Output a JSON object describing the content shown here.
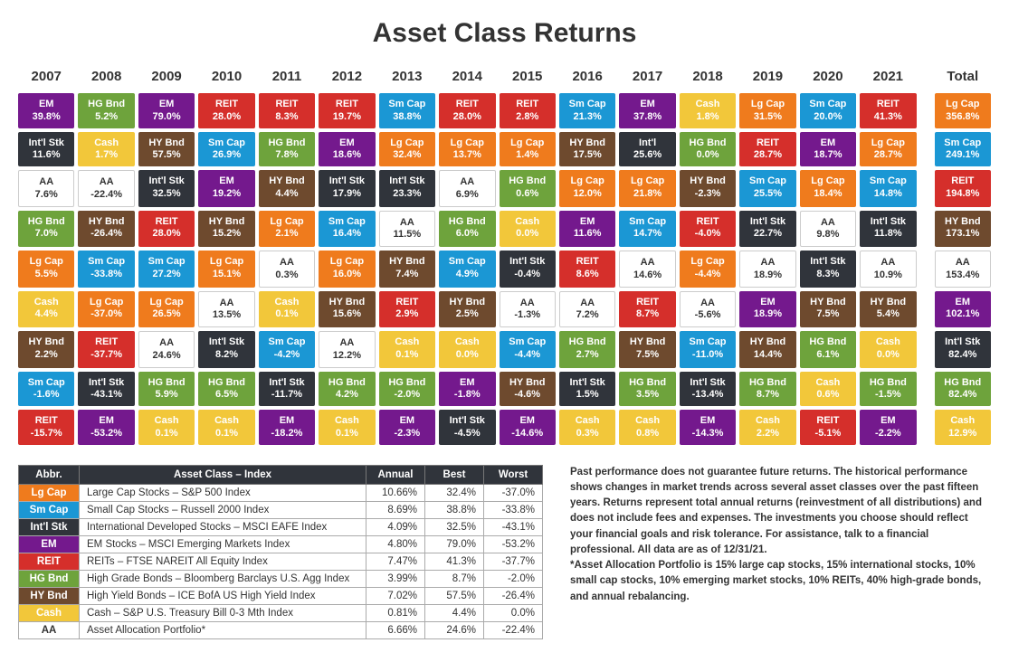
{
  "title": "Asset Class Returns",
  "colors": {
    "Lg Cap": "#ef7b1d",
    "Sm Cap": "#1b97d4",
    "Int'l Stk": "#30343b",
    "EM": "#74198d",
    "REIT": "#d52f2b",
    "HG Bnd": "#6ea33c",
    "HY Bnd": "#6e4a2e",
    "Cash": "#f2c73a",
    "AA": "#ffffff"
  },
  "aa_text_color": "#333333",
  "years": [
    "2007",
    "2008",
    "2009",
    "2010",
    "2011",
    "2012",
    "2013",
    "2014",
    "2015",
    "2016",
    "2017",
    "2018",
    "2019",
    "2020",
    "2021"
  ],
  "total_label": "Total",
  "columns": [
    [
      [
        "EM",
        "39.8%"
      ],
      [
        "Int'l Stk",
        "11.6%"
      ],
      [
        "AA",
        "7.6%"
      ],
      [
        "HG Bnd",
        "7.0%"
      ],
      [
        "Lg Cap",
        "5.5%"
      ],
      [
        "Cash",
        "4.4%"
      ],
      [
        "HY Bnd",
        "2.2%"
      ],
      [
        "Sm Cap",
        "-1.6%"
      ],
      [
        "REIT",
        "-15.7%"
      ]
    ],
    [
      [
        "HG Bnd",
        "5.2%"
      ],
      [
        "Cash",
        "1.7%"
      ],
      [
        "AA",
        "-22.4%"
      ],
      [
        "HY Bnd",
        "-26.4%"
      ],
      [
        "Sm Cap",
        "-33.8%"
      ],
      [
        "Lg Cap",
        "-37.0%"
      ],
      [
        "REIT",
        "-37.7%"
      ],
      [
        "Int'l Stk",
        "-43.1%"
      ],
      [
        "EM",
        "-53.2%"
      ]
    ],
    [
      [
        "EM",
        "79.0%"
      ],
      [
        "HY Bnd",
        "57.5%"
      ],
      [
        "Int'l Stk",
        "32.5%"
      ],
      [
        "REIT",
        "28.0%"
      ],
      [
        "Sm Cap",
        "27.2%"
      ],
      [
        "Lg Cap",
        "26.5%"
      ],
      [
        "AA",
        "24.6%"
      ],
      [
        "HG Bnd",
        "5.9%"
      ],
      [
        "Cash",
        "0.1%"
      ]
    ],
    [
      [
        "REIT",
        "28.0%"
      ],
      [
        "Sm Cap",
        "26.9%"
      ],
      [
        "EM",
        "19.2%"
      ],
      [
        "HY Bnd",
        "15.2%"
      ],
      [
        "Lg Cap",
        "15.1%"
      ],
      [
        "AA",
        "13.5%"
      ],
      [
        "Int'l Stk",
        "8.2%"
      ],
      [
        "HG Bnd",
        "6.5%"
      ],
      [
        "Cash",
        "0.1%"
      ]
    ],
    [
      [
        "REIT",
        "8.3%"
      ],
      [
        "HG Bnd",
        "7.8%"
      ],
      [
        "HY Bnd",
        "4.4%"
      ],
      [
        "Lg Cap",
        "2.1%"
      ],
      [
        "AA",
        "0.3%"
      ],
      [
        "Cash",
        "0.1%"
      ],
      [
        "Sm Cap",
        "-4.2%"
      ],
      [
        "Int'l Stk",
        "-11.7%"
      ],
      [
        "EM",
        "-18.2%"
      ]
    ],
    [
      [
        "REIT",
        "19.7%"
      ],
      [
        "EM",
        "18.6%"
      ],
      [
        "Int'l Stk",
        "17.9%"
      ],
      [
        "Sm Cap",
        "16.4%"
      ],
      [
        "Lg Cap",
        "16.0%"
      ],
      [
        "HY Bnd",
        "15.6%"
      ],
      [
        "AA",
        "12.2%"
      ],
      [
        "HG Bnd",
        "4.2%"
      ],
      [
        "Cash",
        "0.1%"
      ]
    ],
    [
      [
        "Sm Cap",
        "38.8%"
      ],
      [
        "Lg Cap",
        "32.4%"
      ],
      [
        "Int'l Stk",
        "23.3%"
      ],
      [
        "AA",
        "11.5%"
      ],
      [
        "HY Bnd",
        "7.4%"
      ],
      [
        "REIT",
        "2.9%"
      ],
      [
        "Cash",
        "0.1%"
      ],
      [
        "HG Bnd",
        "-2.0%"
      ],
      [
        "EM",
        "-2.3%"
      ]
    ],
    [
      [
        "REIT",
        "28.0%"
      ],
      [
        "Lg Cap",
        "13.7%"
      ],
      [
        "AA",
        "6.9%"
      ],
      [
        "HG Bnd",
        "6.0%"
      ],
      [
        "Sm Cap",
        "4.9%"
      ],
      [
        "HY Bnd",
        "2.5%"
      ],
      [
        "Cash",
        "0.0%"
      ],
      [
        "EM",
        "-1.8%"
      ],
      [
        "Int'l Stk",
        "-4.5%"
      ]
    ],
    [
      [
        "REIT",
        "2.8%"
      ],
      [
        "Lg Cap",
        "1.4%"
      ],
      [
        "HG Bnd",
        "0.6%"
      ],
      [
        "Cash",
        "0.0%"
      ],
      [
        "Int'l Stk",
        "-0.4%"
      ],
      [
        "AA",
        "-1.3%"
      ],
      [
        "Sm Cap",
        "-4.4%"
      ],
      [
        "HY Bnd",
        "-4.6%"
      ],
      [
        "EM",
        "-14.6%"
      ]
    ],
    [
      [
        "Sm Cap",
        "21.3%"
      ],
      [
        "HY Bnd",
        "17.5%"
      ],
      [
        "Lg Cap",
        "12.0%"
      ],
      [
        "EM",
        "11.6%"
      ],
      [
        "REIT",
        "8.6%"
      ],
      [
        "AA",
        "7.2%"
      ],
      [
        "HG Bnd",
        "2.7%"
      ],
      [
        "Int'l Stk",
        "1.5%"
      ],
      [
        "Cash",
        "0.3%"
      ]
    ],
    [
      [
        "EM",
        "37.8%"
      ],
      [
        "Int'l",
        "25.6%"
      ],
      [
        "Lg Cap",
        "21.8%"
      ],
      [
        "Sm Cap",
        "14.7%"
      ],
      [
        "AA",
        "14.6%"
      ],
      [
        "REIT",
        "8.7%"
      ],
      [
        "HY Bnd",
        "7.5%"
      ],
      [
        "HG Bnd",
        "3.5%"
      ],
      [
        "Cash",
        "0.8%"
      ]
    ],
    [
      [
        "Cash",
        "1.8%"
      ],
      [
        "HG Bnd",
        "0.0%"
      ],
      [
        "HY Bnd",
        "-2.3%"
      ],
      [
        "REIT",
        "-4.0%"
      ],
      [
        "Lg Cap",
        "-4.4%"
      ],
      [
        "AA",
        "-5.6%"
      ],
      [
        "Sm Cap",
        "-11.0%"
      ],
      [
        "Int'l Stk",
        "-13.4%"
      ],
      [
        "EM",
        "-14.3%"
      ]
    ],
    [
      [
        "Lg Cap",
        "31.5%"
      ],
      [
        "REIT",
        "28.7%"
      ],
      [
        "Sm Cap",
        "25.5%"
      ],
      [
        "Int'l Stk",
        "22.7%"
      ],
      [
        "AA",
        "18.9%"
      ],
      [
        "EM",
        "18.9%"
      ],
      [
        "HY Bnd",
        "14.4%"
      ],
      [
        "HG Bnd",
        "8.7%"
      ],
      [
        "Cash",
        "2.2%"
      ]
    ],
    [
      [
        "Sm Cap",
        "20.0%"
      ],
      [
        "EM",
        "18.7%"
      ],
      [
        "Lg Cap",
        "18.4%"
      ],
      [
        "AA",
        "9.8%"
      ],
      [
        "Int'l Stk",
        "8.3%"
      ],
      [
        "HY Bnd",
        "7.5%"
      ],
      [
        "HG Bnd",
        "6.1%"
      ],
      [
        "Cash",
        "0.6%"
      ],
      [
        "REIT",
        "-5.1%"
      ]
    ],
    [
      [
        "REIT",
        "41.3%"
      ],
      [
        "Lg Cap",
        "28.7%"
      ],
      [
        "Sm Cap",
        "14.8%"
      ],
      [
        "Int'l Stk",
        "11.8%"
      ],
      [
        "AA",
        "10.9%"
      ],
      [
        "HY Bnd",
        "5.4%"
      ],
      [
        "Cash",
        "0.0%"
      ],
      [
        "HG Bnd",
        "-1.5%"
      ],
      [
        "EM",
        "-2.2%"
      ]
    ]
  ],
  "total_column": [
    [
      "Lg Cap",
      "356.8%"
    ],
    [
      "Sm Cap",
      "249.1%"
    ],
    [
      "REIT",
      "194.8%"
    ],
    [
      "HY Bnd",
      "173.1%"
    ],
    [
      "AA",
      "153.4%"
    ],
    [
      "EM",
      "102.1%"
    ],
    [
      "Int'l Stk",
      "82.4%"
    ],
    [
      "HG Bnd",
      "82.4%"
    ],
    [
      "Cash",
      "12.9%"
    ]
  ],
  "legend": {
    "headers": [
      "Abbr.",
      "Asset Class – Index",
      "Annual",
      "Best",
      "Worst"
    ],
    "rows": [
      {
        "abbr": "Lg Cap",
        "name": "Large Cap Stocks – S&P 500 Index",
        "annual": "10.66%",
        "best": "32.4%",
        "worst": "-37.0%"
      },
      {
        "abbr": "Sm Cap",
        "name": "Small Cap Stocks – Russell 2000 Index",
        "annual": "8.69%",
        "best": "38.8%",
        "worst": "-33.8%"
      },
      {
        "abbr": "Int'l Stk",
        "name": "International Developed Stocks – MSCI EAFE Index",
        "annual": "4.09%",
        "best": "32.5%",
        "worst": "-43.1%"
      },
      {
        "abbr": "EM",
        "name": "EM Stocks – MSCI Emerging Markets Index",
        "annual": "4.80%",
        "best": "79.0%",
        "worst": "-53.2%"
      },
      {
        "abbr": "REIT",
        "name": "REITs – FTSE NAREIT All Equity Index",
        "annual": "7.47%",
        "best": "41.3%",
        "worst": "-37.7%"
      },
      {
        "abbr": "HG Bnd",
        "name": "High Grade Bonds – Bloomberg Barclays U.S. Agg Index",
        "annual": "3.99%",
        "best": "8.7%",
        "worst": "-2.0%"
      },
      {
        "abbr": "HY Bnd",
        "name": "High Yield Bonds – ICE BofA US High Yield Index",
        "annual": "7.02%",
        "best": "57.5%",
        "worst": "-26.4%"
      },
      {
        "abbr": "Cash",
        "name": "Cash – S&P U.S. Treasury Bill 0-3 Mth Index",
        "annual": "0.81%",
        "best": "4.4%",
        "worst": "0.0%"
      },
      {
        "abbr": "AA",
        "name": "Asset Allocation Portfolio*",
        "annual": "6.66%",
        "best": "24.6%",
        "worst": "-22.4%"
      }
    ]
  },
  "disclaimer": "Past performance does not guarantee future returns. The historical performance shows changes in market trends across several asset classes over the past fifteen years. Returns represent total annual returns (reinvestment of all distributions) and does not include fees and expenses. The investments you choose should reflect your financial goals and risk tolerance. For assistance, talk to a financial professional. All data are as of 12/31/21.",
  "footnote": "*Asset Allocation Portfolio is 15% large cap stocks, 15% international stocks, 10% small cap stocks, 10% emerging market stocks, 10% REITs, 40% high-grade bonds, and annual rebalancing."
}
